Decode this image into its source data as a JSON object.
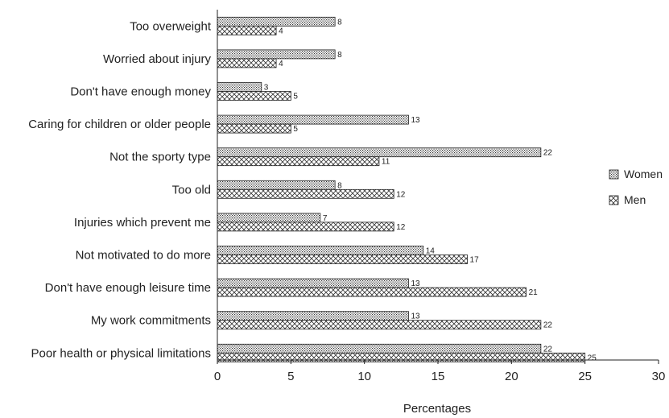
{
  "chart_data": {
    "type": "bar",
    "orientation": "horizontal",
    "categories": [
      "Too overweight",
      "Worried about injury",
      "Don't have enough money",
      "Caring for children or older people",
      "Not the sporty type",
      "Too old",
      "Injuries which prevent me",
      "Not motivated to do more",
      "Don't have enough leisure time",
      "My work commitments",
      "Poor health or physical limitations"
    ],
    "series": [
      {
        "name": "Women",
        "values": [
          8,
          8,
          3,
          13,
          22,
          8,
          7,
          14,
          13,
          13,
          22
        ]
      },
      {
        "name": "Men",
        "values": [
          4,
          4,
          5,
          5,
          11,
          12,
          12,
          17,
          21,
          22,
          25
        ]
      }
    ],
    "xlabel": "Percentages",
    "ylabel": "",
    "xlim": [
      0,
      30
    ],
    "xticks": [
      0,
      5,
      10,
      15,
      20,
      25,
      30
    ],
    "grid": false,
    "legend_position": "right"
  }
}
